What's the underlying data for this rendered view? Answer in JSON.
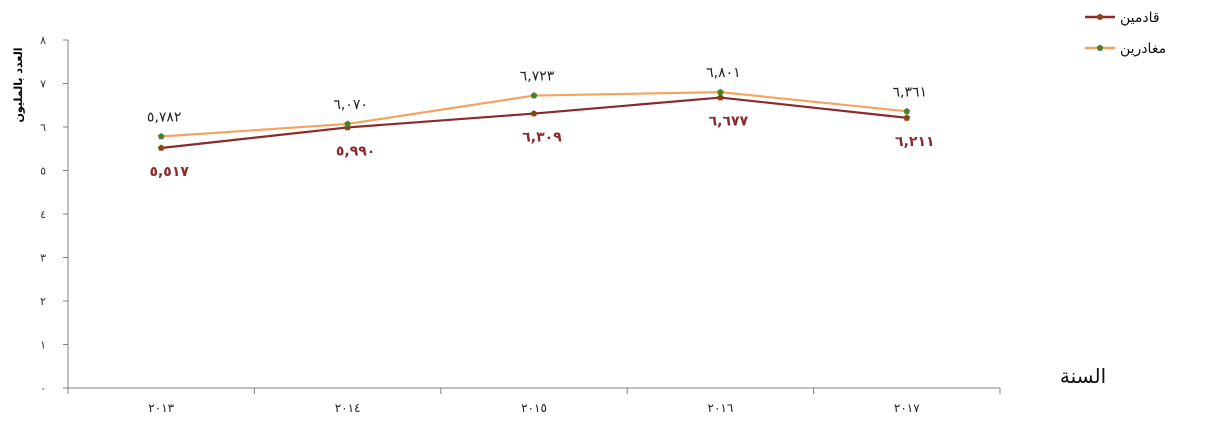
{
  "chart_data": {
    "type": "line",
    "categories": [
      "٢٠١٣",
      "٢٠١٤",
      "٢٠١٥",
      "٢٠١٦",
      "٢٠١٧"
    ],
    "series": [
      {
        "name": "قادمين",
        "values": [
          5.517,
          5.99,
          6.309,
          6.677,
          6.211
        ],
        "labels": [
          "٥,٥١٧",
          "٥,٩٩٠",
          "٦,٣٠٩",
          "٦,٦٧٧",
          "٦,٢١١"
        ],
        "color": "#8B2A2A"
      },
      {
        "name": "مغادرين",
        "values": [
          5.782,
          6.07,
          6.723,
          6.801,
          6.361
        ],
        "labels": [
          "٥,٧٨٢",
          "٦,٠٧٠",
          "٦,٧٢٣",
          "٦,٨٠١",
          "٦,٣٦١"
        ],
        "color": "#F4A460"
      }
    ],
    "marker_color": "#4E7D2C",
    "ylabel": "العدد بالمليون",
    "xlabel": "السنة",
    "ylim": [
      0,
      8
    ],
    "yticks": [
      "٠",
      "١",
      "٢",
      "٣",
      "٤",
      "٥",
      "٦",
      "٧",
      "٨"
    ],
    "grid": false,
    "legend_position": "top-right"
  }
}
